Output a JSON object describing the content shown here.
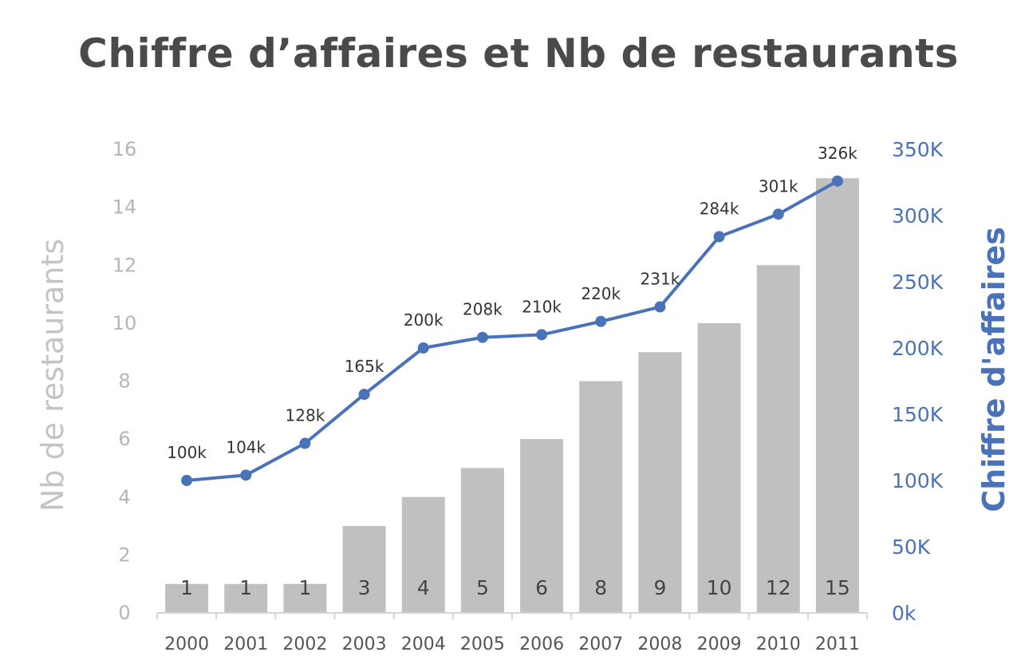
{
  "chart_data": {
    "type": "bar",
    "title": "Chiffre d’affaires et Nb de restaurants",
    "categories": [
      "2000",
      "2001",
      "2002",
      "2003",
      "2004",
      "2005",
      "2006",
      "2007",
      "2008",
      "2009",
      "2010",
      "2011"
    ],
    "series": [
      {
        "name": "Nb de restaurants",
        "type": "bar",
        "axis": "left",
        "values": [
          1,
          1,
          1,
          3,
          4,
          5,
          6,
          8,
          9,
          10,
          12,
          15
        ],
        "labels": [
          "1",
          "1",
          "1",
          "3",
          "4",
          "5",
          "6",
          "8",
          "9",
          "10",
          "12",
          "15"
        ],
        "color": "#c0c0c0"
      },
      {
        "name": "Chiffre d'affaires",
        "type": "line",
        "axis": "right",
        "values": [
          100000,
          104000,
          128000,
          165000,
          200000,
          208000,
          210000,
          220000,
          231000,
          284000,
          301000,
          326000
        ],
        "labels": [
          "100k",
          "104k",
          "128k",
          "165k",
          "200k",
          "208k",
          "210k",
          "220k",
          "231k",
          "284k",
          "301k",
          "326k"
        ],
        "color": "#4a72b8"
      }
    ],
    "ylabel": "Nb de restaurants",
    "ylim": [
      0,
      16
    ],
    "yticks": [
      "0",
      "2",
      "4",
      "6",
      "8",
      "10",
      "12",
      "14",
      "16"
    ],
    "ylabel_right": "Chiffre d'affaires",
    "ylim_right": [
      0,
      350000
    ],
    "yticks_right": [
      "0k",
      "50K",
      "100K",
      "150K",
      "200K",
      "250K",
      "300K",
      "350K"
    ],
    "grid": false
  }
}
